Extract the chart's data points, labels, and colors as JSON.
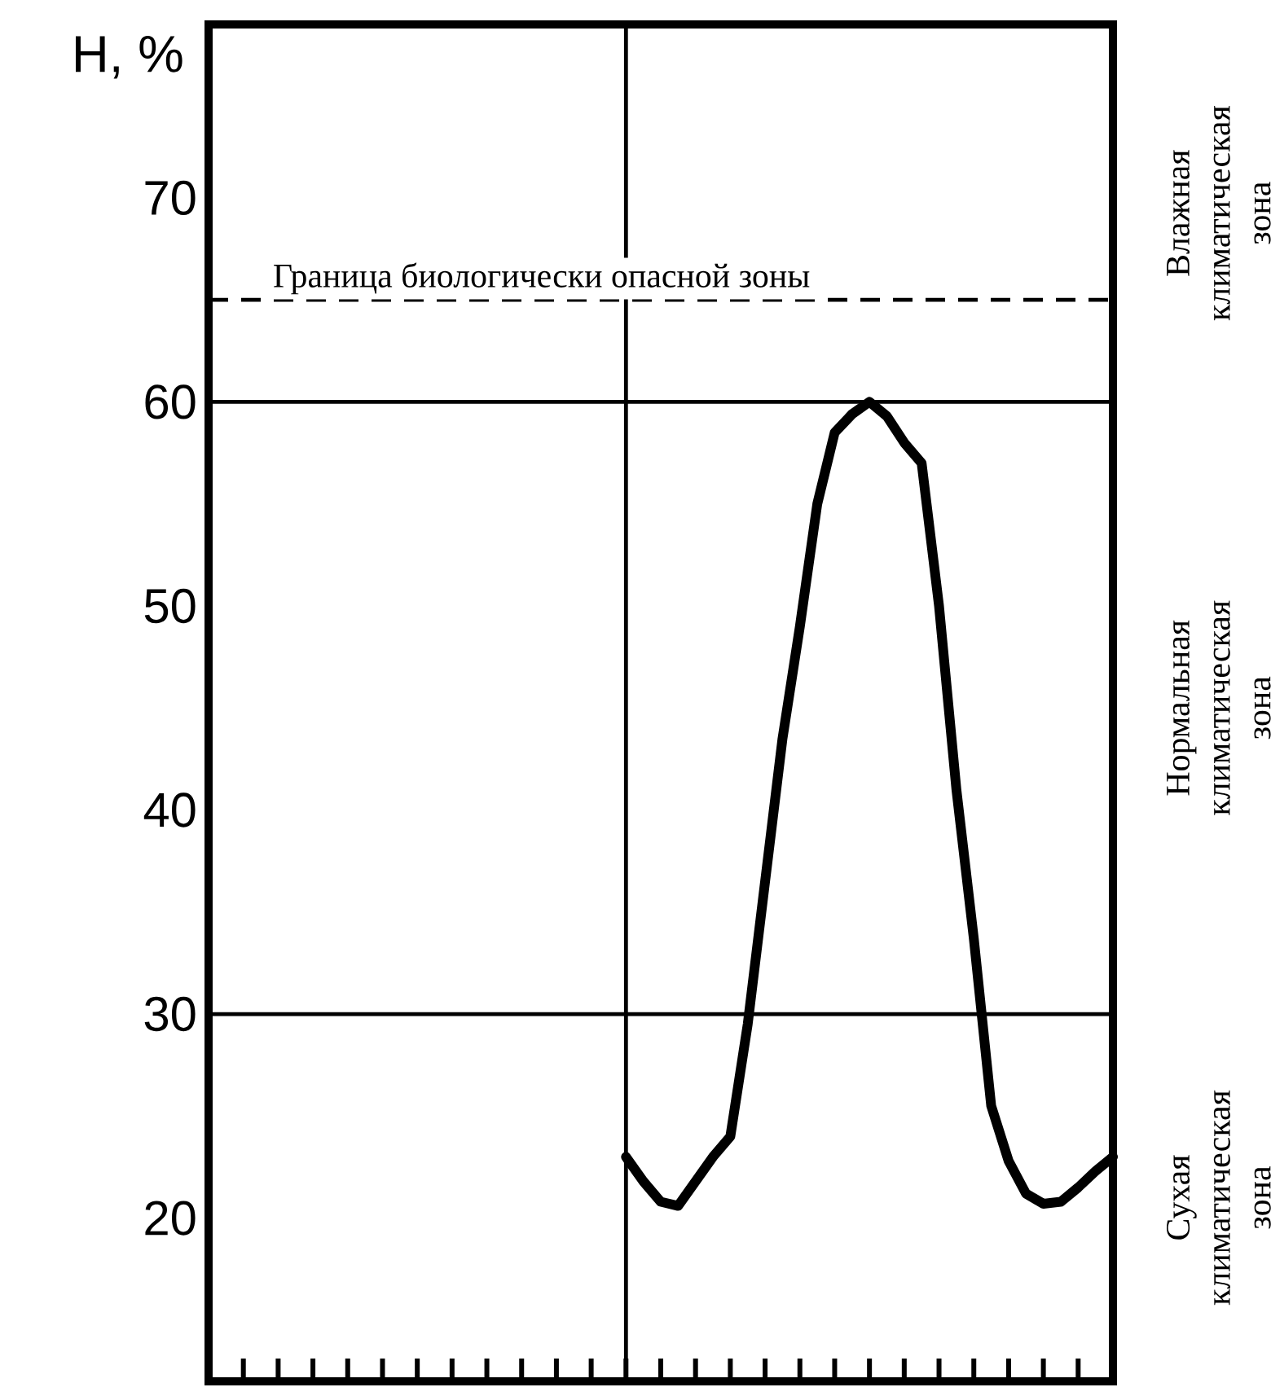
{
  "chart_data": {
    "type": "line",
    "ylabel": "H, %",
    "categories": [
      null,
      null,
      null,
      null,
      null,
      null,
      null,
      null,
      null,
      null,
      null,
      null,
      null,
      null,
      null,
      null,
      null,
      null,
      null,
      null,
      null,
      null,
      null,
      null,
      null,
      null,
      null,
      null,
      null,
      null,
      null,
      null,
      null,
      null,
      null,
      null,
      null,
      null,
      null,
      null,
      null,
      null,
      null,
      null,
      null,
      null,
      null,
      null,
      null,
      null,
      null,
      null,
      null
    ],
    "ylim": [
      12,
      78.5
    ],
    "yticks": [
      20,
      30,
      40,
      50,
      60,
      70
    ],
    "series": [
      {
        "color": "#000000",
        "values": [
          null,
          null,
          null,
          null,
          null,
          null,
          null,
          null,
          null,
          null,
          null,
          null,
          null,
          null,
          null,
          null,
          null,
          null,
          null,
          null,
          null,
          null,
          null,
          null,
          23,
          21.8,
          20.8,
          20.6,
          21.8,
          23,
          24,
          29.5,
          36.5,
          43.5,
          49,
          55,
          58.5,
          59.4,
          60,
          59.3,
          58,
          57,
          50,
          41,
          33.7,
          25.5,
          22.8,
          21.2,
          20.7,
          20.8,
          21.5,
          22.3,
          23
        ]
      }
    ],
    "ref_lines": [
      {
        "axis": "y",
        "value": 65,
        "label": "Граница биологически опасной зоны",
        "line_style": "dashed",
        "color": "#000000"
      },
      {
        "axis": "y",
        "value": 60,
        "color": "#000000"
      },
      {
        "axis": "y",
        "value": 30,
        "color": "#000000"
      }
    ],
    "annotations": [
      "Влажная климатическая зона",
      "Нормальная климатическая зона",
      "Сухая климатическая зона"
    ]
  }
}
